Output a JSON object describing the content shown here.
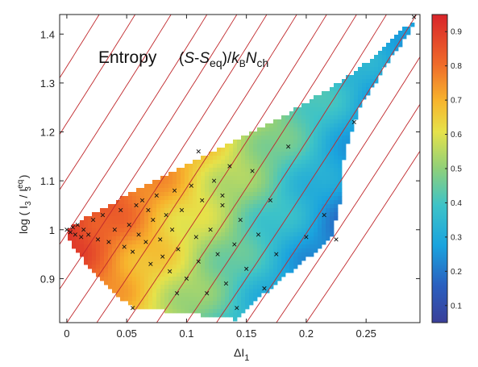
{
  "chart_data": {
    "type": "heatmap",
    "title_word": "Entropy",
    "title_formula": {
      "open": "(",
      "s": "S",
      "minus": "-",
      "s2": "S",
      "sub_eq": "eq",
      "close": ")/",
      "k": "k",
      "sub_b": "B",
      "n": "N",
      "sub_ch": "ch"
    },
    "xlabel": {
      "main": "ΔI",
      "sub": "1"
    },
    "ylabel": {
      "prefix": "log ( I",
      "sub1": "3",
      "mid": " / I",
      "sup": "eq",
      "sub2": "3",
      "suffix": " )"
    },
    "xlim": [
      -0.006,
      0.295
    ],
    "ylim": [
      0.81,
      1.44
    ],
    "x_ticks": [
      0,
      0.05,
      0.1,
      0.15,
      0.2,
      0.25
    ],
    "x_tick_labels": [
      "0",
      "0.05",
      "0.1",
      "0.15",
      "0.2",
      "0.25"
    ],
    "y_ticks": [
      0.9,
      1,
      1.1,
      1.2,
      1.3,
      1.4
    ],
    "y_tick_labels": [
      "0.9",
      "1",
      "1.1",
      "1.2",
      "1.3",
      "1.4"
    ],
    "colorbar": {
      "min": 0.05,
      "max": 0.95,
      "ticks": [
        0.1,
        0.2,
        0.3,
        0.4,
        0.5,
        0.6,
        0.7,
        0.8,
        0.9
      ],
      "tick_labels": [
        "0.1",
        "0.2",
        "0.3",
        "0.4",
        "0.5",
        "0.6",
        "0.7",
        "0.8",
        "0.9"
      ],
      "colormap": "jet"
    },
    "region_boundary": [
      [
        0.0,
        1.0
      ],
      [
        0.02,
        1.03
      ],
      [
        0.05,
        1.07
      ],
      [
        0.09,
        1.12
      ],
      [
        0.14,
        1.18
      ],
      [
        0.18,
        1.23
      ],
      [
        0.22,
        1.29
      ],
      [
        0.25,
        1.34
      ],
      [
        0.27,
        1.39
      ],
      [
        0.292,
        1.43
      ],
      [
        0.285,
        1.4
      ],
      [
        0.265,
        1.33
      ],
      [
        0.245,
        1.25
      ],
      [
        0.232,
        1.16
      ],
      [
        0.228,
        1.05
      ],
      [
        0.222,
        0.99
      ],
      [
        0.205,
        0.95
      ],
      [
        0.185,
        0.91
      ],
      [
        0.165,
        0.87
      ],
      [
        0.15,
        0.84
      ],
      [
        0.143,
        0.815
      ],
      [
        0.135,
        0.82
      ],
      [
        0.1,
        0.828
      ],
      [
        0.055,
        0.842
      ],
      [
        0.04,
        0.87
      ],
      [
        0.02,
        0.92
      ],
      [
        0.008,
        0.955
      ],
      [
        0.0,
        0.985
      ]
    ],
    "entropy_field": {
      "description_free": true,
      "anchor_points": [
        {
          "x": 0.0,
          "y": 1.0,
          "v": 0.9
        },
        {
          "x": 0.05,
          "y": 1.0,
          "v": 0.75
        },
        {
          "x": 0.1,
          "y": 1.0,
          "v": 0.6
        },
        {
          "x": 0.15,
          "y": 1.0,
          "v": 0.45
        },
        {
          "x": 0.2,
          "y": 1.0,
          "v": 0.3
        },
        {
          "x": 0.25,
          "y": 1.2,
          "v": 0.2
        },
        {
          "x": 0.29,
          "y": 1.42,
          "v": 0.12
        }
      ]
    },
    "isentrope_lines": {
      "color": "#c0282c",
      "count": 14,
      "offsets": [
        -0.14,
        -0.11,
        -0.08,
        -0.05,
        -0.025,
        0.0,
        0.025,
        0.05,
        0.075,
        0.1,
        0.125,
        0.15,
        0.175,
        0.2
      ],
      "slope_y_per_x": 3.6,
      "curvature": 1.8
    },
    "markers": [
      [
        0.0,
        1.0
      ],
      [
        0.003,
        0.995
      ],
      [
        0.005,
        1.005
      ],
      [
        0.007,
        0.99
      ],
      [
        0.009,
        1.01
      ],
      [
        0.012,
        0.985
      ],
      [
        0.014,
        1.0
      ],
      [
        0.018,
        0.99
      ],
      [
        0.022,
        1.02
      ],
      [
        0.026,
        0.98
      ],
      [
        0.03,
        1.03
      ],
      [
        0.035,
        0.975
      ],
      [
        0.04,
        1.0
      ],
      [
        0.045,
        1.04
      ],
      [
        0.048,
        0.965
      ],
      [
        0.052,
        1.01
      ],
      [
        0.055,
        0.955
      ],
      [
        0.058,
        1.05
      ],
      [
        0.06,
        0.99
      ],
      [
        0.063,
        1.06
      ],
      [
        0.066,
        0.975
      ],
      [
        0.07,
        0.93
      ],
      [
        0.072,
        1.02
      ],
      [
        0.075,
        1.07
      ],
      [
        0.078,
        0.98
      ],
      [
        0.08,
        0.945
      ],
      [
        0.083,
        1.03
      ],
      [
        0.086,
        0.915
      ],
      [
        0.088,
        1.0
      ],
      [
        0.09,
        1.08
      ],
      [
        0.093,
        0.96
      ],
      [
        0.096,
        1.04
      ],
      [
        0.1,
        0.9
      ],
      [
        0.104,
        1.09
      ],
      [
        0.108,
        0.985
      ],
      [
        0.11,
        0.935
      ],
      [
        0.113,
        1.06
      ],
      [
        0.117,
        0.87
      ],
      [
        0.12,
        1.0
      ],
      [
        0.123,
        1.1
      ],
      [
        0.126,
        0.95
      ],
      [
        0.13,
        1.05
      ],
      [
        0.133,
        0.89
      ],
      [
        0.136,
        1.13
      ],
      [
        0.14,
        0.97
      ],
      [
        0.142,
        0.84
      ],
      [
        0.145,
        1.02
      ],
      [
        0.15,
        0.92
      ],
      [
        0.155,
        1.12
      ],
      [
        0.16,
        0.99
      ],
      [
        0.165,
        0.88
      ],
      [
        0.17,
        1.06
      ],
      [
        0.175,
        0.95
      ],
      [
        0.185,
        1.17
      ],
      [
        0.2,
        0.985
      ],
      [
        0.215,
        1.03
      ],
      [
        0.225,
        0.98
      ],
      [
        0.24,
        1.22
      ],
      [
        0.29,
        1.435
      ],
      [
        0.055,
        0.84
      ],
      [
        0.11,
        1.16
      ],
      [
        0.13,
        1.07
      ],
      [
        0.092,
        0.87
      ],
      [
        0.068,
        1.04
      ]
    ]
  }
}
